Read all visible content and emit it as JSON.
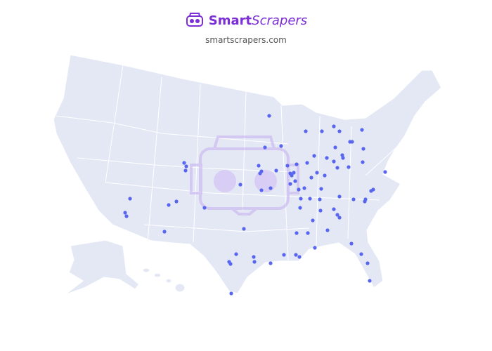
{
  "header": {
    "brand_bold": "Smart",
    "brand_italic": "Scrapers",
    "url": "smartscrapers.com"
  }
}
